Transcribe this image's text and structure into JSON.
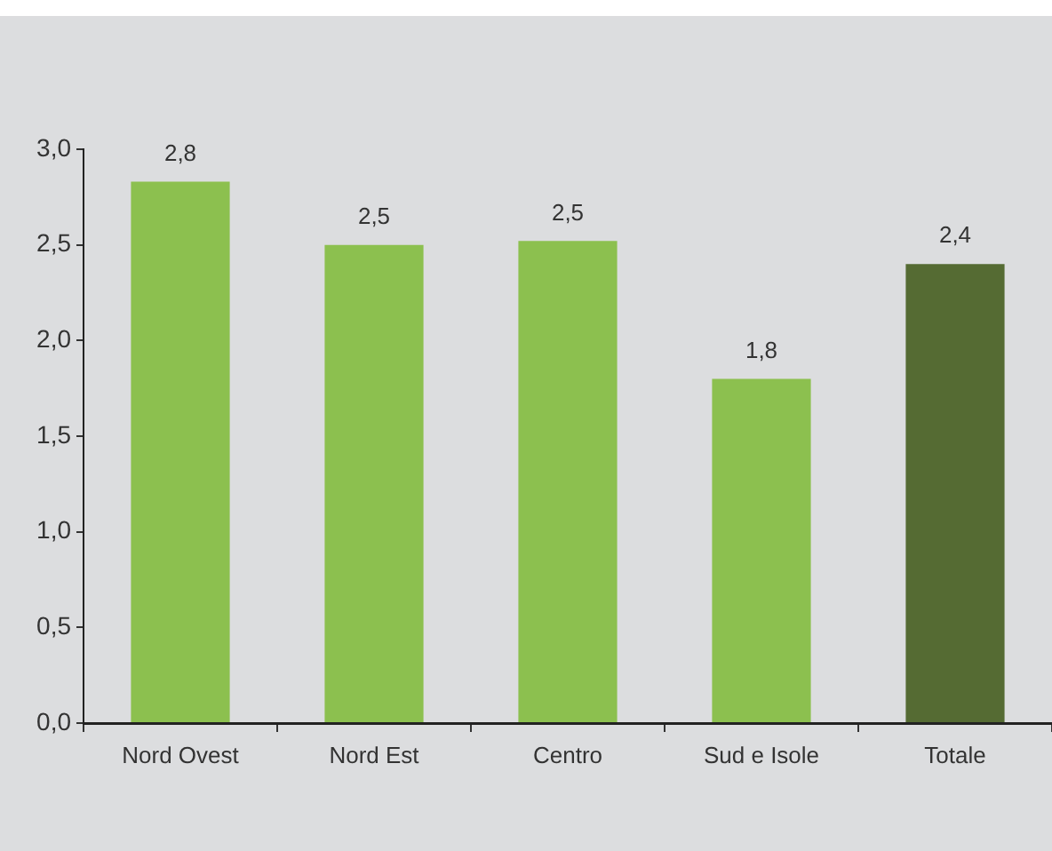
{
  "chart_data": {
    "type": "bar",
    "categories": [
      "Nord Ovest",
      "Nord Est",
      "Centro",
      "Sud e Isole",
      "Totale"
    ],
    "values": [
      2.83,
      2.5,
      2.52,
      1.8,
      2.4
    ],
    "colors": [
      "#8cc04f",
      "#8cc04f",
      "#8cc04f",
      "#8cc04f",
      "#556b33"
    ],
    "value_labels": [
      "2,8",
      "2,5",
      "2,5",
      "1,8",
      "2,4"
    ],
    "ylim": [
      0,
      3
    ],
    "yticks": [
      {
        "value": 0,
        "label": "0,0"
      },
      {
        "value": 0.5,
        "label": "0,5"
      },
      {
        "value": 1,
        "label": "1,0"
      },
      {
        "value": 1.5,
        "label": "1,5"
      },
      {
        "value": 2,
        "label": "2,0"
      },
      {
        "value": 2.5,
        "label": "2,5"
      },
      {
        "value": 3,
        "label": "3,0"
      }
    ],
    "grid": false
  }
}
